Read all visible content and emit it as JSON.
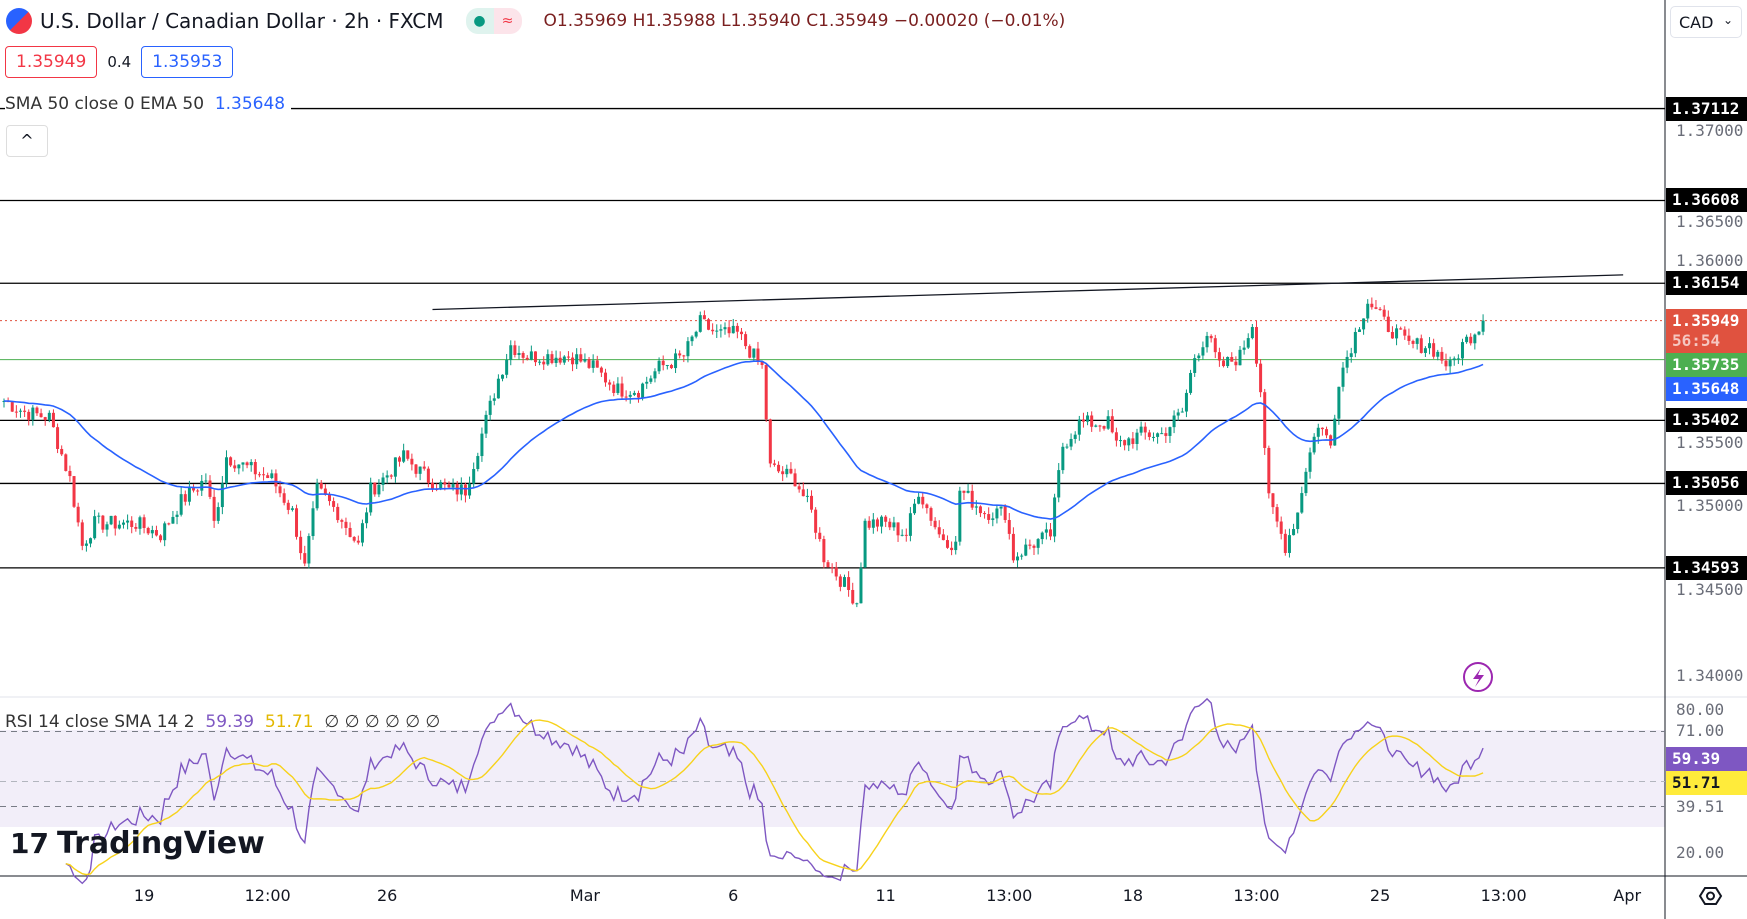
{
  "header": {
    "symbol": "U.S. Dollar / Canadian Dollar · 2h · FXCM",
    "status_icons": [
      "market-open-dot",
      "delay-icon"
    ],
    "ohlc": "O1.35969 H1.35988 L1.35940 C1.35949 −0.00020 (−0.01%)",
    "bid": "1.35949",
    "spread": "0.4",
    "ask": "1.35953"
  },
  "indicator": {
    "label": "SMA 50 close 0 EMA 50",
    "value": "1.35648"
  },
  "rsi": {
    "label": "RSI 14 close SMA 14 2",
    "value": "59.39",
    "sma": "51.71",
    "extra": "∅ ∅ ∅ ∅ ∅ ∅"
  },
  "currency": "CAD",
  "colors": {
    "up": "#089981",
    "down": "#f23645",
    "ema": "#2962ff",
    "rsi": "#7e57c2",
    "rsi_sma": "#f7d21b"
  },
  "price_axis": {
    "ticks": [
      "1.37000",
      "1.36500",
      "1.36000",
      "1.35500",
      "1.35000",
      "1.34500",
      "1.34000"
    ],
    "labels": [
      {
        "value": "1.37112",
        "color": "#000000"
      },
      {
        "value": "1.36608",
        "color": "#000000"
      },
      {
        "value": "1.36154",
        "color": "#000000"
      },
      {
        "value": "1.35949",
        "color": "#e0523f",
        "sub": "56:54"
      },
      {
        "value": "1.35735",
        "color": "#4caf50"
      },
      {
        "value": "1.35648",
        "color": "#2962ff"
      },
      {
        "value": "1.35402",
        "color": "#000000"
      },
      {
        "value": "1.35056",
        "color": "#000000"
      },
      {
        "value": "1.34593",
        "color": "#000000"
      }
    ]
  },
  "rsi_axis": {
    "ticks": [
      "80.00",
      "71.00",
      "39.51",
      "20.00"
    ],
    "labels": [
      {
        "value": "59.39",
        "color": "#7e57c2"
      },
      {
        "value": "51.71",
        "color": "#ffeb3b"
      }
    ]
  },
  "time_axis": [
    {
      "label": "19",
      "bar": 34
    },
    {
      "label": "12:00",
      "bar": 64
    },
    {
      "label": "26",
      "bar": 93
    },
    {
      "label": "Mar",
      "bar": 141
    },
    {
      "label": "6",
      "bar": 177
    },
    {
      "label": "11",
      "bar": 214
    },
    {
      "label": "13:00",
      "bar": 244
    },
    {
      "label": "18",
      "bar": 274
    },
    {
      "label": "13:00",
      "bar": 304
    },
    {
      "label": "25",
      "bar": 334
    },
    {
      "label": "13:00",
      "bar": 364
    },
    {
      "label": "Apr",
      "bar": 394
    }
  ],
  "logo": "TradingView",
  "chart_data": {
    "type": "candlestick",
    "ylim": [
      1.34,
      1.37
    ],
    "hlines": [
      1.37112,
      1.36608,
      1.36154,
      1.35402,
      1.35056,
      1.34593
    ],
    "green_line": 1.35735,
    "last_price": 1.35949,
    "trendline": [
      {
        "bar": 104,
        "price": 1.3601
      },
      {
        "bar": 393,
        "price": 1.362
      }
    ],
    "close_keypoints": [
      [
        0,
        1.35509
      ],
      [
        5,
        1.35448
      ],
      [
        11,
        1.35418
      ],
      [
        16,
        1.35081
      ],
      [
        19,
        1.34715
      ],
      [
        22,
        1.34837
      ],
      [
        27,
        1.34837
      ],
      [
        32,
        1.34837
      ],
      [
        38,
        1.34776
      ],
      [
        43,
        1.34959
      ],
      [
        49,
        1.35081
      ],
      [
        51,
        1.34837
      ],
      [
        54,
        1.35204
      ],
      [
        59,
        1.35143
      ],
      [
        65,
        1.35081
      ],
      [
        70,
        1.34898
      ],
      [
        73,
        1.34593
      ],
      [
        76,
        1.3502
      ],
      [
        81,
        1.34898
      ],
      [
        86,
        1.34715
      ],
      [
        89,
        1.3502
      ],
      [
        92,
        1.35081
      ],
      [
        97,
        1.35204
      ],
      [
        103,
        1.35081
      ],
      [
        108,
        1.3502
      ],
      [
        112,
        1.3502
      ],
      [
        116,
        1.35326
      ],
      [
        120,
        1.35631
      ],
      [
        123,
        1.35815
      ],
      [
        127,
        1.35754
      ],
      [
        132,
        1.35754
      ],
      [
        138,
        1.35754
      ],
      [
        143,
        1.35692
      ],
      [
        149,
        1.3557
      ],
      [
        154,
        1.3557
      ],
      [
        159,
        1.35692
      ],
      [
        165,
        1.35754
      ],
      [
        169,
        1.35937
      ],
      [
        173,
        1.35876
      ],
      [
        178,
        1.35876
      ],
      [
        184,
        1.35692
      ],
      [
        186,
        1.35143
      ],
      [
        192,
        1.35081
      ],
      [
        196,
        1.34898
      ],
      [
        199,
        1.34654
      ],
      [
        203,
        1.34532
      ],
      [
        207,
        1.34409
      ],
      [
        209,
        1.34837
      ],
      [
        214,
        1.34837
      ],
      [
        219,
        1.34776
      ],
      [
        222,
        1.3502
      ],
      [
        227,
        1.34776
      ],
      [
        231,
        1.34715
      ],
      [
        232,
        1.3502
      ],
      [
        238,
        1.34898
      ],
      [
        243,
        1.34898
      ],
      [
        245,
        1.34654
      ],
      [
        249,
        1.34715
      ],
      [
        254,
        1.34776
      ],
      [
        257,
        1.35265
      ],
      [
        261,
        1.35387
      ],
      [
        268,
        1.35387
      ],
      [
        270,
        1.35265
      ],
      [
        276,
        1.35326
      ],
      [
        281,
        1.35326
      ],
      [
        286,
        1.35448
      ],
      [
        289,
        1.35754
      ],
      [
        292,
        1.35876
      ],
      [
        295,
        1.35692
      ],
      [
        300,
        1.35754
      ],
      [
        303,
        1.35937
      ],
      [
        305,
        1.3557
      ],
      [
        307,
        1.34959
      ],
      [
        311,
        1.34715
      ],
      [
        314,
        1.34898
      ],
      [
        316,
        1.35143
      ],
      [
        319,
        1.35387
      ],
      [
        322,
        1.35265
      ],
      [
        324,
        1.35631
      ],
      [
        328,
        1.35876
      ],
      [
        331,
        1.36059
      ],
      [
        335,
        1.35937
      ],
      [
        341,
        1.35815
      ],
      [
        346,
        1.35815
      ],
      [
        351,
        1.35692
      ],
      [
        354,
        1.35815
      ],
      [
        359,
        1.35949
      ]
    ]
  }
}
